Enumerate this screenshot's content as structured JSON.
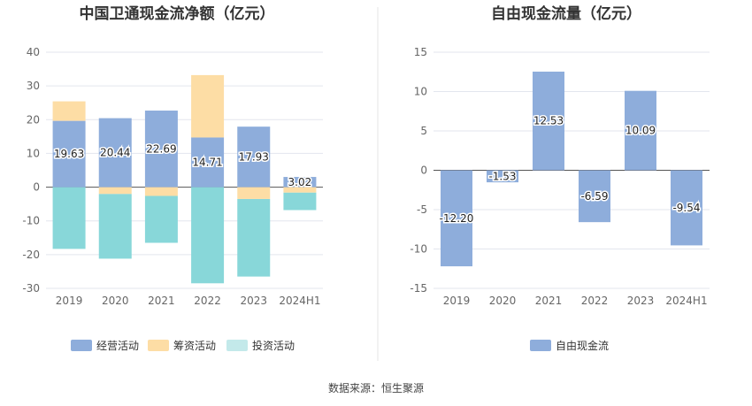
{
  "source_note": "数据来源：恒生聚源",
  "colors": {
    "operating": "#8EADDB",
    "financing": "#FDDDA5",
    "investing": "#88D7D9",
    "investing_legend": "#C3E9EA",
    "fcf": "#8EADDB",
    "grid": "#E3E6EE",
    "zero_line": "#555555",
    "divider": "#E6E6E6"
  },
  "chart_data": [
    {
      "type": "bar",
      "stacked": true,
      "title": "中国卫通现金流净额（亿元）",
      "categories": [
        "2019",
        "2020",
        "2021",
        "2022",
        "2023",
        "2024H1"
      ],
      "ylim": [
        -30,
        40
      ],
      "yticks": [
        "40",
        "30",
        "20",
        "10",
        "0",
        "-10",
        "-20",
        "-30"
      ],
      "ytick_values": [
        40,
        30,
        20,
        10,
        0,
        -10,
        -20,
        -30
      ],
      "grid": true,
      "legend_position": "bottom",
      "series": [
        {
          "name": "经营活动",
          "key": "operating",
          "values": [
            19.63,
            20.44,
            22.69,
            14.71,
            17.93,
            3.02
          ],
          "labels": [
            "19.63",
            "20.44",
            "22.69",
            "14.71",
            "17.93",
            "3.02"
          ]
        },
        {
          "name": "筹资活动",
          "key": "financing",
          "values": [
            5.8,
            -2.0,
            -2.6,
            18.5,
            -3.5,
            -1.6
          ]
        },
        {
          "name": "投资活动",
          "key": "investing",
          "values": [
            -18.3,
            -19.2,
            -13.9,
            -28.5,
            -23.0,
            -5.2
          ]
        }
      ]
    },
    {
      "type": "bar",
      "title": "自由现金流量（亿元）",
      "categories": [
        "2019",
        "2020",
        "2021",
        "2022",
        "2023",
        "2024H1"
      ],
      "ylim": [
        -15,
        15
      ],
      "yticks": [
        "15",
        "10",
        "5",
        "0",
        "-5",
        "-10",
        "-15"
      ],
      "ytick_values": [
        15,
        10,
        5,
        0,
        -5,
        -10,
        -15
      ],
      "grid": true,
      "legend_position": "bottom",
      "series": [
        {
          "name": "自由现金流",
          "key": "fcf",
          "values": [
            -12.2,
            -1.53,
            12.53,
            -6.59,
            10.09,
            -9.54
          ],
          "labels": [
            "-12.20",
            "-1.53",
            "12.53",
            "-6.59",
            "10.09",
            "-9.54"
          ]
        }
      ]
    }
  ]
}
